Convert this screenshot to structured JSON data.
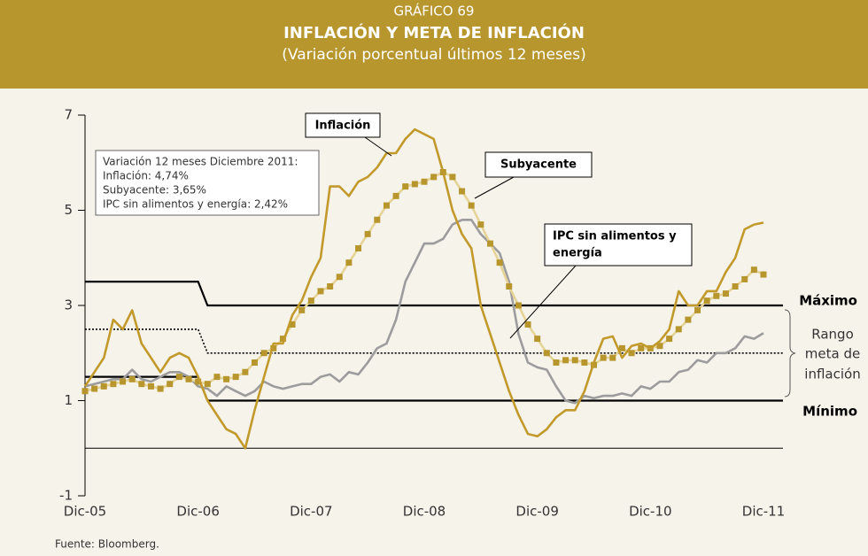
{
  "chart_data": {
    "type": "line",
    "title_lines": [
      "GRÁFICO 69",
      "INFLACIÓN Y META DE INFLACIÓN",
      "(Variación porcentual últimos 12 meses)"
    ],
    "categories": [
      "Dic-05",
      null,
      null,
      null,
      null,
      null,
      null,
      null,
      null,
      null,
      null,
      null,
      "Dic-06",
      null,
      null,
      null,
      null,
      null,
      null,
      null,
      null,
      null,
      null,
      null,
      "Dic-07",
      null,
      null,
      null,
      null,
      null,
      null,
      null,
      null,
      null,
      null,
      null,
      "Dic-08",
      null,
      null,
      null,
      null,
      null,
      null,
      null,
      null,
      null,
      null,
      null,
      "Dic-09",
      null,
      null,
      null,
      null,
      null,
      null,
      null,
      null,
      null,
      null,
      null,
      "Dic-10",
      null,
      null,
      null,
      null,
      null,
      null,
      null,
      null,
      null,
      null,
      null,
      "Dic-11"
    ],
    "ylim": [
      -1,
      7
    ],
    "yticks": [
      -1,
      1,
      3,
      5,
      7
    ],
    "hline": 0,
    "series": [
      {
        "name": "Máximo",
        "color": "#000000",
        "style": "solid",
        "values": [
          3.5,
          3.5,
          3.5,
          3.5,
          3.5,
          3.5,
          3.5,
          3.5,
          3.5,
          3.5,
          3.5,
          3.5,
          3.5,
          3,
          3,
          3,
          3,
          3,
          3,
          3,
          3,
          3,
          3,
          3,
          3,
          3,
          3,
          3,
          3,
          3,
          3,
          3,
          3,
          3,
          3,
          3,
          3,
          3,
          3,
          3,
          3,
          3,
          3,
          3,
          3,
          3,
          3,
          3,
          3,
          3,
          3,
          3,
          3,
          3,
          3,
          3,
          3,
          3,
          3,
          3,
          3,
          3,
          3,
          3,
          3,
          3,
          3,
          3,
          3,
          3,
          3,
          3,
          3
        ]
      },
      {
        "name": "Mínimo",
        "color": "#000000",
        "style": "solid",
        "values": [
          1.5,
          1.5,
          1.5,
          1.5,
          1.5,
          1.5,
          1.5,
          1.5,
          1.5,
          1.5,
          1.5,
          1.5,
          1.5,
          1,
          1,
          1,
          1,
          1,
          1,
          1,
          1,
          1,
          1,
          1,
          1,
          1,
          1,
          1,
          1,
          1,
          1,
          1,
          1,
          1,
          1,
          1,
          1,
          1,
          1,
          1,
          1,
          1,
          1,
          1,
          1,
          1,
          1,
          1,
          1,
          1,
          1,
          1,
          1,
          1,
          1,
          1,
          1,
          1,
          1,
          1,
          1,
          1,
          1,
          1,
          1,
          1,
          1,
          1,
          1,
          1,
          1,
          1,
          1
        ]
      },
      {
        "color": "#000000",
        "style": "dotted",
        "values": [
          2.5,
          2.5,
          2.5,
          2.5,
          2.5,
          2.5,
          2.5,
          2.5,
          2.5,
          2.5,
          2.5,
          2.5,
          2.5,
          2,
          2,
          2,
          2,
          2,
          2,
          2,
          2,
          2,
          2,
          2,
          2,
          2,
          2,
          2,
          2,
          2,
          2,
          2,
          2,
          2,
          2,
          2,
          2,
          2,
          2,
          2,
          2,
          2,
          2,
          2,
          2,
          2,
          2,
          2,
          2,
          2,
          2,
          2,
          2,
          2,
          2,
          2,
          2,
          2,
          2,
          2,
          2,
          2,
          2,
          2,
          2,
          2,
          2,
          2,
          2,
          2,
          2,
          2,
          2
        ]
      },
      {
        "name": "IPC sin alimentos y energía",
        "callout_lines": [
          "IPC sin alimentos y",
          "energía"
        ],
        "color": "#9c9c9c",
        "style": "solid",
        "values": [
          1.3,
          1.35,
          1.4,
          1.45,
          1.45,
          1.65,
          1.45,
          1.4,
          1.5,
          1.6,
          1.6,
          1.5,
          1.3,
          1.25,
          1.1,
          1.3,
          1.2,
          1.1,
          1.2,
          1.4,
          1.3,
          1.25,
          1.3,
          1.35,
          1.35,
          1.5,
          1.55,
          1.4,
          1.6,
          1.55,
          1.8,
          2.1,
          2.2,
          2.7,
          3.5,
          3.9,
          4.3,
          4.3,
          4.4,
          4.7,
          4.8,
          4.8,
          4.5,
          4.3,
          4.1,
          3.5,
          2.4,
          1.8,
          1.7,
          1.65,
          1.3,
          1.0,
          0.95,
          1.1,
          1.05,
          1.1,
          1.1,
          1.15,
          1.1,
          1.3,
          1.25,
          1.4,
          1.4,
          1.6,
          1.65,
          1.85,
          1.8,
          2.0,
          2.0,
          2.1,
          2.35,
          2.3,
          2.42
        ]
      },
      {
        "name": "Subyacente",
        "color": "#b8962e",
        "line_color": "#e6d497",
        "marker": "square",
        "style": "solid",
        "values": [
          1.2,
          1.25,
          1.3,
          1.35,
          1.4,
          1.45,
          1.35,
          1.3,
          1.25,
          1.35,
          1.5,
          1.45,
          1.4,
          1.35,
          1.5,
          1.45,
          1.5,
          1.6,
          1.8,
          2.0,
          2.1,
          2.3,
          2.6,
          2.9,
          3.1,
          3.3,
          3.4,
          3.6,
          3.9,
          4.2,
          4.5,
          4.8,
          5.1,
          5.3,
          5.5,
          5.55,
          5.6,
          5.7,
          5.8,
          5.7,
          5.4,
          5.1,
          4.7,
          4.3,
          3.9,
          3.4,
          3.0,
          2.6,
          2.3,
          2.0,
          1.8,
          1.85,
          1.85,
          1.8,
          1.75,
          1.9,
          1.9,
          2.1,
          2.0,
          2.1,
          2.1,
          2.15,
          2.3,
          2.5,
          2.7,
          2.9,
          3.1,
          3.2,
          3.25,
          3.4,
          3.55,
          3.75,
          3.65
        ]
      },
      {
        "name": "Inflación",
        "color": "#c29a2c",
        "style": "solid",
        "values": [
          1.3,
          1.6,
          1.9,
          2.7,
          2.5,
          2.9,
          2.2,
          1.9,
          1.6,
          1.9,
          2.0,
          1.9,
          1.5,
          1.0,
          0.7,
          0.4,
          0.3,
          0.0,
          0.8,
          1.5,
          2.2,
          2.2,
          2.8,
          3.1,
          3.6,
          4.0,
          5.5,
          5.5,
          5.3,
          5.6,
          5.7,
          5.9,
          6.2,
          6.2,
          6.5,
          6.7,
          6.6,
          6.5,
          5.8,
          5.0,
          4.5,
          4.2,
          3.0,
          2.4,
          1.8,
          1.2,
          0.7,
          0.3,
          0.25,
          0.4,
          0.65,
          0.8,
          0.8,
          1.2,
          1.8,
          2.3,
          2.35,
          1.9,
          2.15,
          2.2,
          2.1,
          2.25,
          2.5,
          3.3,
          3.0,
          3.0,
          3.3,
          3.3,
          3.7,
          4.0,
          4.6,
          4.7,
          4.74
        ]
      }
    ],
    "range_label_lines": [
      "Rango",
      "meta de",
      "inflación"
    ],
    "note_lines": [
      "Variación 12 meses Diciembre 2011:",
      "Inflación: 4,74%",
      "Subyacente: 3,65%",
      "IPC sin alimentos y energía: 2,42%"
    ],
    "source": "Fuente: Bloomberg."
  }
}
